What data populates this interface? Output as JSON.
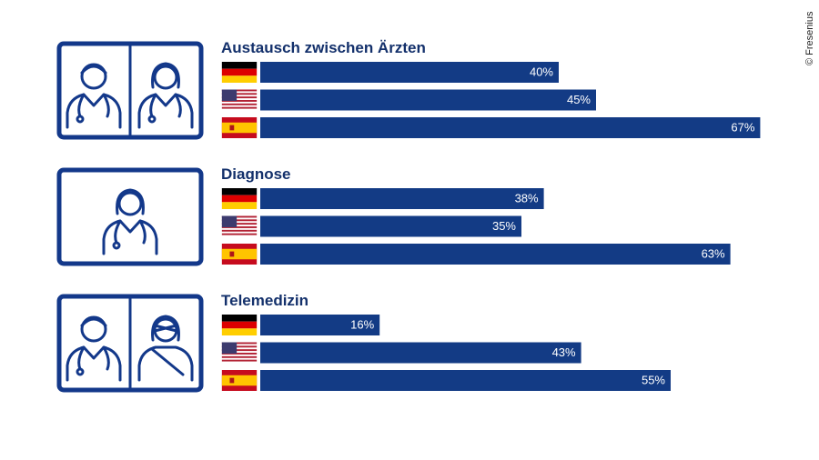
{
  "credit": "© Fresenius",
  "chart_data": [
    {
      "type": "bar",
      "title": "Austausch zwischen Ärzten",
      "color": "#133b85",
      "values": [
        40,
        45,
        67
      ],
      "value_labels": [
        "40%",
        "45%",
        "67%"
      ]
    },
    {
      "type": "bar",
      "title": "Diagnose",
      "color": "#133b85",
      "values": [
        38,
        35,
        63
      ],
      "value_labels": [
        "38%",
        "35%",
        "63%"
      ]
    },
    {
      "type": "bar",
      "title": "Telemedizin",
      "color": "#133b85",
      "values": [
        16,
        43,
        55
      ],
      "value_labels": [
        "16%",
        "43%",
        "55%"
      ]
    }
  ]
}
